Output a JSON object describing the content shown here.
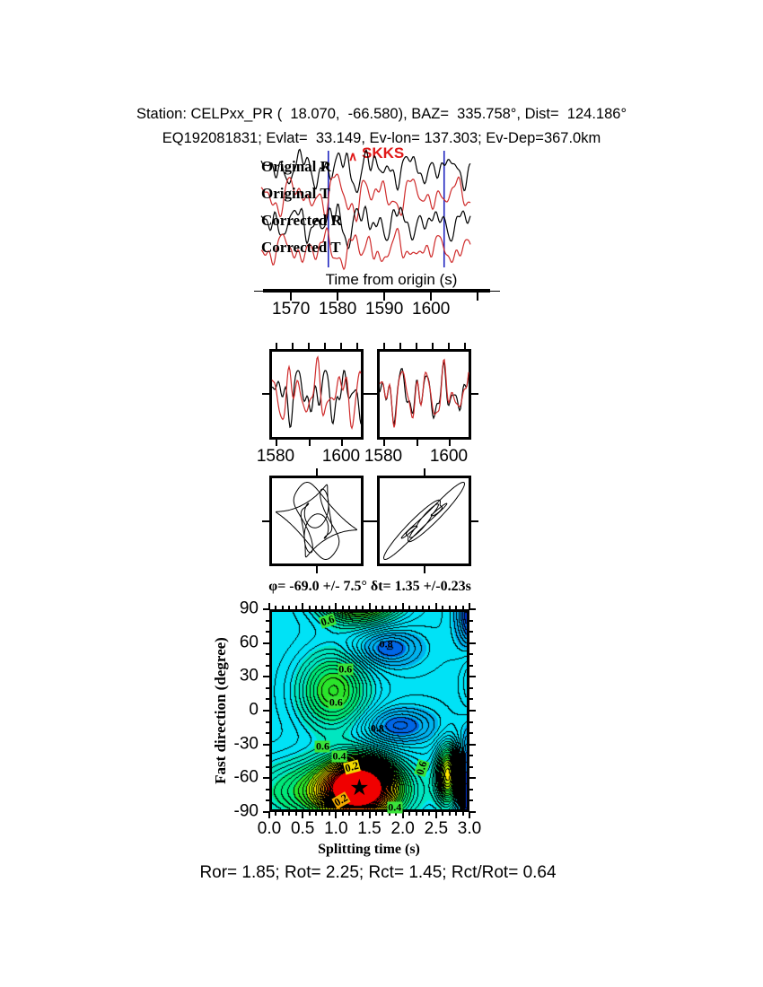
{
  "header": {
    "line1": "Station: CELPxx_PR (  18.070,  -66.580), BAZ=  335.758°, Dist=  124.186°",
    "line2": "EQ192081831; Evlat=  33.149, Ev-lon= 137.303; Ev-Dep=367.0km"
  },
  "footer": {
    "stats": "Ror= 1.85; Rot= 2.25; Rct= 1.45; Rct/Rot= 0.64"
  },
  "colors": {
    "trace_black": "#000000",
    "trace_red": "#cf2b2b",
    "pick_blue": "#2228c0",
    "phase_red": "#e01818",
    "star": "#000000"
  },
  "chart_data": [
    {
      "id": "waveforms",
      "type": "line",
      "phase_label": "SKKS",
      "x_label": "Time from origin (s)",
      "x_axis": {
        "start": 1564,
        "ticks": [
          1570,
          1580,
          1590,
          1600
        ],
        "extra_ticks": [
          1610
        ]
      },
      "picks": [
        1578.0,
        1602.8
      ],
      "envelope": {
        "center": 95,
        "width": 55,
        "gain": 0.5
      },
      "traces": [
        {
          "label": "Original R",
          "color": "black",
          "components": [
            [
              40,
              8,
              0.7
            ],
            [
              24,
              6.5,
              2.3
            ],
            [
              15,
              5,
              4.1
            ],
            [
              10.5,
              3.5,
              1.1
            ],
            [
              7.5,
              2.2,
              3.3
            ]
          ]
        },
        {
          "label": "Original T",
          "color": "red",
          "components": [
            [
              44,
              9,
              2.4
            ],
            [
              27,
              7,
              0.5
            ],
            [
              17,
              5.5,
              3.0
            ],
            [
              12,
              4,
              5.1
            ],
            [
              8.5,
              2.5,
              1.6
            ]
          ]
        },
        {
          "label": "Corrected R",
          "color": "black",
          "components": [
            [
              38,
              8,
              1.4
            ],
            [
              23,
              6.5,
              3.6
            ],
            [
              14.5,
              5,
              0.8
            ],
            [
              10,
              3.5,
              4.5
            ],
            [
              7.8,
              2.3,
              2.0
            ]
          ]
        },
        {
          "label": "Corrected T",
          "color": "red",
          "components": [
            [
              42,
              7,
              4.0
            ],
            [
              25,
              6,
              1.7
            ],
            [
              16,
              4.5,
              5.3
            ],
            [
              11,
              3.2,
              2.8
            ],
            [
              8,
              2.2,
              0.6
            ]
          ]
        }
      ]
    },
    {
      "id": "windowed_pair",
      "type": "line",
      "panels": [
        {
          "tick_labels": [
            1580,
            1600
          ],
          "traces": [
            {
              "color": "black",
              "components": [
                [
                  26,
                  16,
                  0.4
                ],
                [
                  16,
                  12,
                  2.8
                ],
                [
                  11,
                  9,
                  5.0
                ],
                [
                  8,
                  6,
                  1.6
                ]
              ]
            },
            {
              "color": "red",
              "components": [
                [
                  26,
                  18,
                  2.1
                ],
                [
                  16,
                  11,
                  1.0
                ],
                [
                  11,
                  10,
                  3.7
                ],
                [
                  8,
                  5,
                  5.4
                ]
              ]
            }
          ]
        },
        {
          "tick_labels": [
            1580,
            1600
          ],
          "traces": [
            {
              "color": "black",
              "components": [
                [
                  24,
                  15,
                  1.3
                ],
                [
                  15,
                  13,
                  3.9
                ],
                [
                  10,
                  8,
                  0.3
                ],
                [
                  7.5,
                  6,
                  4.7
                ]
              ]
            },
            {
              "color": "red",
              "components": [
                [
                  24,
                  18,
                  1.1
                ],
                [
                  15,
                  12,
                  3.6
                ],
                [
                  10,
                  9,
                  0.6
                ],
                [
                  7.5,
                  5,
                  4.3
                ]
              ]
            }
          ]
        }
      ]
    },
    {
      "id": "particle_motion",
      "type": "scatter",
      "panels": [
        {
          "x_components": [
            [
              3,
              30,
              0.0
            ],
            [
              5,
              17,
              1.2
            ],
            [
              7,
              12,
              2.5
            ],
            [
              11,
              7,
              4.0
            ]
          ],
          "y_components": [
            [
              3,
              27,
              1.7
            ],
            [
              5,
              19,
              3.1
            ],
            [
              7,
              12,
              0.8
            ],
            [
              11,
              7,
              2.3
            ]
          ]
        },
        {
          "x_components": [
            [
              3,
              32,
              0.3
            ],
            [
              5,
              17,
              1.5
            ],
            [
              7,
              10,
              2.8
            ],
            [
              11,
              6,
              4.1
            ]
          ],
          "y_components": [
            [
              3,
              25,
              0.6
            ],
            [
              5,
              14,
              1.8
            ],
            [
              7,
              11,
              3.0
            ],
            [
              11,
              5,
              4.5
            ]
          ]
        }
      ]
    },
    {
      "id": "misfit_contour",
      "type": "heatmap",
      "title": "φ= -69.0 +/- 7.5° δt= 1.35 +/-0.23s",
      "xlabel": "Splitting time (s)",
      "ylabel": "Fast direction (degree)",
      "xlim": [
        0,
        3
      ],
      "ylim": [
        -90,
        90
      ],
      "xticks": [
        0.0,
        0.5,
        1.0,
        1.5,
        2.0,
        2.5,
        3.0
      ],
      "yticks": [
        90,
        60,
        30,
        0,
        -30,
        -60,
        -90
      ],
      "minor_x": 0.1,
      "minor_y": 10,
      "result": {
        "phi": -69.0,
        "phi_err": 7.5,
        "dt": 1.35,
        "dt_err": 0.23
      },
      "star": {
        "x": 1.35,
        "y": -69
      },
      "contour_interval": 0.025,
      "field": {
        "base": 0.72,
        "gaussians": [
          [
            1.35,
            -70,
            0.5,
            24,
            -0.8
          ],
          [
            0.95,
            -74,
            1.2,
            30,
            -0.3
          ],
          [
            1.35,
            110,
            0.6,
            26,
            -0.62
          ],
          [
            0.95,
            18,
            0.55,
            36,
            -0.3
          ],
          [
            2.72,
            -58,
            0.18,
            26,
            -0.4
          ],
          [
            3.3,
            38,
            0.3,
            42,
            -0.26
          ],
          [
            1.78,
            57,
            0.5,
            17,
            0.17
          ],
          [
            1.95,
            -14,
            0.55,
            16,
            0.17
          ],
          [
            3.25,
            -72,
            0.28,
            48,
            0.6
          ],
          [
            3.22,
            88,
            0.3,
            40,
            0.4
          ]
        ]
      },
      "palette": [
        [
          0.1,
          "#f00000"
        ],
        [
          0.175,
          "#ff5500"
        ],
        [
          0.25,
          "#ffa500"
        ],
        [
          0.33,
          "#ffe800"
        ],
        [
          0.4,
          "#b0ee00"
        ],
        [
          0.48,
          "#2ae42a"
        ],
        [
          0.56,
          "#00e878"
        ],
        [
          0.64,
          "#00e6c0"
        ],
        [
          0.76,
          "#00e2f6"
        ],
        [
          0.84,
          "#00b2ee"
        ],
        [
          0.9,
          "#0066e6"
        ],
        [
          0.95,
          "#0030cc"
        ],
        [
          1.01,
          "#001488"
        ]
      ],
      "labels": [
        {
          "text": "0.6",
          "x": 0.88,
          "y": 80,
          "bg": "#3ae23a",
          "rot": -18
        },
        {
          "text": "0.8",
          "x": 1.75,
          "y": 59,
          "bg": "",
          "rot": 0
        },
        {
          "text": "0.6",
          "x": 1.14,
          "y": 37,
          "bg": "#3ae23a",
          "rot": 0
        },
        {
          "text": "0.6",
          "x": 1.0,
          "y": 7,
          "bg": "#3ae23a",
          "rot": 0
        },
        {
          "text": "0.8",
          "x": 1.62,
          "y": -16,
          "bg": "",
          "rot": 0
        },
        {
          "text": "0.6",
          "x": 0.8,
          "y": -32,
          "bg": "#3ae23a",
          "rot": 0
        },
        {
          "text": "0.4",
          "x": 1.05,
          "y": -41,
          "bg": "#3ae23a",
          "rot": 0
        },
        {
          "text": "0.2",
          "x": 1.24,
          "y": -50,
          "bg": "#f0d800",
          "rot": -15
        },
        {
          "text": "0.6",
          "x": 2.29,
          "y": -51,
          "bg": "#3ae23a",
          "rot": -72
        },
        {
          "text": "0.2",
          "x": 1.08,
          "y": -80,
          "bg": "#f0a800",
          "rot": -30
        },
        {
          "text": "0.4",
          "x": 1.88,
          "y": -86,
          "bg": "#3ae23a",
          "rot": 0
        }
      ]
    }
  ]
}
